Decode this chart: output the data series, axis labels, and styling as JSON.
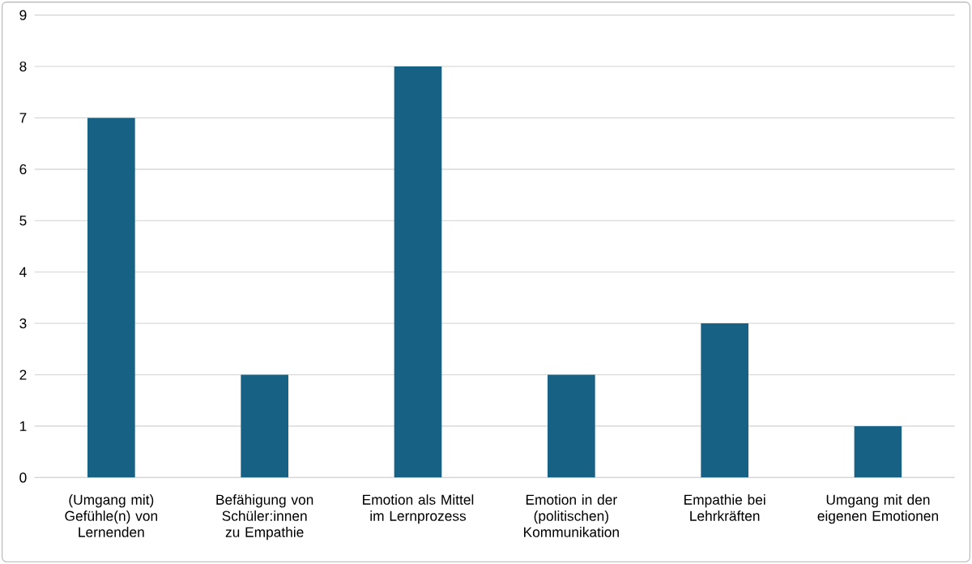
{
  "chart_data": {
    "type": "bar",
    "categories": [
      "(Umgang mit) Gefühle(n) von Lernenden",
      "Befähigung von Schüler:innen zu Empathie",
      "Emotion als Mittel im Lernprozess",
      "Emotion in der (politischen) Kommunikation",
      "Empathie bei Lehrkräften",
      "Umgang mit den eigenen Emotionen"
    ],
    "values": [
      7,
      2,
      8,
      2,
      3,
      1
    ],
    "color": "#176184",
    "ylim": [
      0,
      9
    ],
    "yticks": [
      0,
      1,
      2,
      3,
      4,
      5,
      6,
      7,
      8,
      9
    ],
    "grid": "y"
  }
}
